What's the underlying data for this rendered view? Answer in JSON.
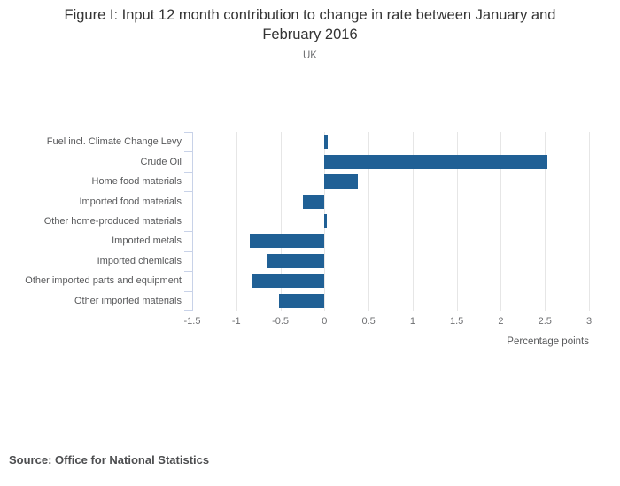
{
  "figure": {
    "title": "Figure I: Input 12 month contribution to change in rate between January and February 2016",
    "subtitle": "UK",
    "source": "Source: Office for National Statistics"
  },
  "chart_data": {
    "type": "bar",
    "orientation": "horizontal",
    "title": "Figure I: Input 12 month contribution to change in rate between January and February 2016",
    "subtitle": "UK",
    "categories": [
      "Fuel incl. Climate Change Levy",
      "Crude Oil",
      "Home food materials",
      "Imported food materials",
      "Other home-produced materials",
      "Imported metals",
      "Imported chemicals",
      "Other imported parts and equipment",
      "Other imported materials"
    ],
    "values": [
      0.04,
      2.53,
      0.38,
      -0.24,
      0.03,
      -0.85,
      -0.66,
      -0.83,
      -0.52
    ],
    "xlabel": "Percentage points",
    "ylabel": "",
    "xlim": [
      -1.5,
      3
    ],
    "xticks": [
      -1.5,
      -1,
      -0.5,
      0,
      0.5,
      1,
      1.5,
      2,
      2.5,
      3
    ],
    "xtick_labels": [
      "-1.5",
      "-1",
      "-0.5",
      "0",
      "0.5",
      "1",
      "1.5",
      "2",
      "2.5",
      "3"
    ],
    "grid": true,
    "legend": false,
    "colors": {
      "bar": "#206095",
      "gridline": "#e6e6e6",
      "axis_line": "#c8d2e8",
      "tick_text": "#6e6f72",
      "label_text": "#58595b",
      "title_text": "#333333"
    }
  }
}
